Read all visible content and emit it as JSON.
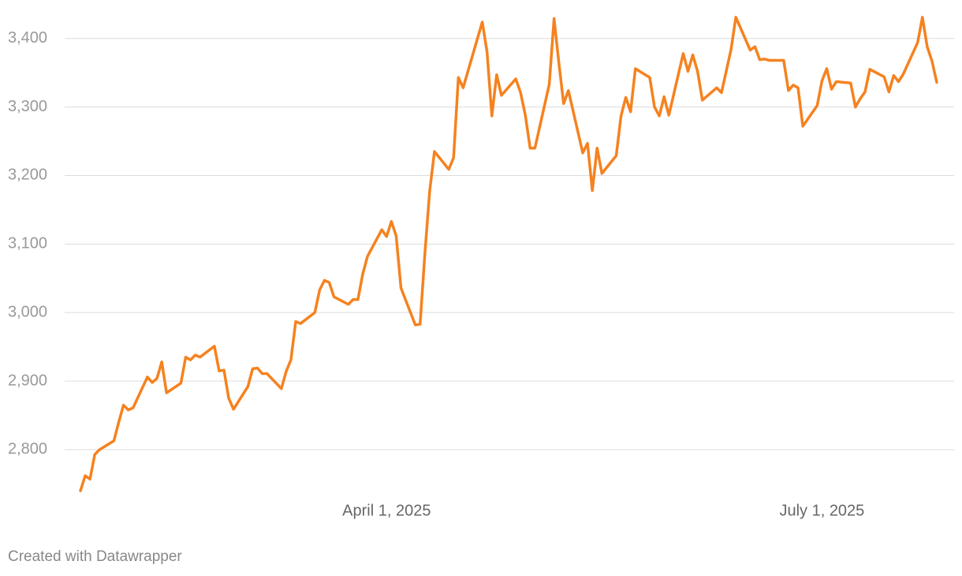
{
  "chart_data": {
    "type": "line",
    "x": [
      "2025-01-27",
      "2025-01-28",
      "2025-01-29",
      "2025-01-30",
      "2025-01-31",
      "2025-02-03",
      "2025-02-04",
      "2025-02-05",
      "2025-02-06",
      "2025-02-07",
      "2025-02-10",
      "2025-02-11",
      "2025-02-12",
      "2025-02-13",
      "2025-02-14",
      "2025-02-17",
      "2025-02-18",
      "2025-02-19",
      "2025-02-20",
      "2025-02-21",
      "2025-02-24",
      "2025-02-25",
      "2025-02-26",
      "2025-02-27",
      "2025-02-28",
      "2025-03-03",
      "2025-03-04",
      "2025-03-05",
      "2025-03-06",
      "2025-03-07",
      "2025-03-10",
      "2025-03-11",
      "2025-03-12",
      "2025-03-13",
      "2025-03-14",
      "2025-03-17",
      "2025-03-18",
      "2025-03-19",
      "2025-03-20",
      "2025-03-21",
      "2025-03-24",
      "2025-03-25",
      "2025-03-26",
      "2025-03-27",
      "2025-03-28",
      "2025-03-31",
      "2025-04-01",
      "2025-04-02",
      "2025-04-03",
      "2025-04-04",
      "2025-04-07",
      "2025-04-08",
      "2025-04-09",
      "2025-04-10",
      "2025-04-11",
      "2025-04-14",
      "2025-04-15",
      "2025-04-16",
      "2025-04-17",
      "2025-04-21",
      "2025-04-22",
      "2025-04-23",
      "2025-04-24",
      "2025-04-25",
      "2025-04-28",
      "2025-04-29",
      "2025-04-30",
      "2025-05-01",
      "2025-05-02",
      "2025-05-05",
      "2025-05-06",
      "2025-05-07",
      "2025-05-08",
      "2025-05-09",
      "2025-05-12",
      "2025-05-13",
      "2025-05-14",
      "2025-05-15",
      "2025-05-16",
      "2025-05-19",
      "2025-05-20",
      "2025-05-21",
      "2025-05-22",
      "2025-05-23",
      "2025-05-26",
      "2025-05-27",
      "2025-05-28",
      "2025-05-29",
      "2025-05-30",
      "2025-06-02",
      "2025-06-03",
      "2025-06-04",
      "2025-06-05",
      "2025-06-06",
      "2025-06-09",
      "2025-06-10",
      "2025-06-12",
      "2025-06-13",
      "2025-06-16",
      "2025-06-17",
      "2025-06-18",
      "2025-06-19",
      "2025-06-20",
      "2025-06-23",
      "2025-06-24",
      "2025-06-25",
      "2025-06-26",
      "2025-06-27",
      "2025-06-30",
      "2025-07-01",
      "2025-07-02",
      "2025-07-03",
      "2025-07-04",
      "2025-07-07",
      "2025-07-08",
      "2025-07-09",
      "2025-07-10",
      "2025-07-11",
      "2025-07-14",
      "2025-07-15",
      "2025-07-16",
      "2025-07-17",
      "2025-07-18",
      "2025-07-21",
      "2025-07-22",
      "2025-07-23",
      "2025-07-24",
      "2025-07-25"
    ],
    "values": [
      2740,
      2762,
      2757,
      2793,
      2800,
      2813,
      2840,
      2865,
      2858,
      2861,
      2906,
      2898,
      2904,
      2928,
      2883,
      2897,
      2935,
      2931,
      2938,
      2935,
      2951,
      2915,
      2916,
      2875,
      2859,
      2892,
      2918,
      2919,
      2911,
      2911,
      2889,
      2914,
      2931,
      2987,
      2984,
      3000,
      3033,
      3047,
      3044,
      3023,
      3012,
      3019,
      3019,
      3056,
      3082,
      3121,
      3111,
      3133,
      3112,
      3036,
      2982,
      2983,
      3086,
      3177,
      3235,
      3209,
      3226,
      3343,
      3328,
      3424,
      3380,
      3287,
      3347,
      3317,
      3341,
      3321,
      3288,
      3240,
      3240,
      3333,
      3429,
      3365,
      3305,
      3324,
      3233,
      3247,
      3178,
      3240,
      3203,
      3229,
      3287,
      3314,
      3293,
      3356,
      3343,
      3300,
      3287,
      3315,
      3288,
      3378,
      3352,
      3376,
      3352,
      3310,
      3328,
      3321,
      3384,
      3431,
      3383,
      3388,
      3369,
      3370,
      3368,
      3368,
      3324,
      3332,
      3328,
      3272,
      3302,
      3338,
      3356,
      3326,
      3337,
      3335,
      3300,
      3312,
      3322,
      3355,
      3344,
      3322,
      3346,
      3337,
      3348,
      3394,
      3431,
      3388,
      3367,
      3336
    ],
    "color": "#f5821f",
    "xlim": [
      "2025-01-27",
      "2025-07-25"
    ],
    "xticks": [
      {
        "value": "2025-04-01",
        "label": "April 1, 2025"
      },
      {
        "value": "2025-07-01",
        "label": "July 1, 2025"
      }
    ],
    "ylim": [
      2740,
      3440
    ],
    "yticks": [
      {
        "value": 2800,
        "label": "2,800"
      },
      {
        "value": 2900,
        "label": "2,900"
      },
      {
        "value": 3000,
        "label": "3,000"
      },
      {
        "value": 3100,
        "label": "3,100"
      },
      {
        "value": 3200,
        "label": "3,200"
      },
      {
        "value": 3300,
        "label": "3,300"
      },
      {
        "value": 3400,
        "label": "3,400"
      }
    ],
    "grid": true,
    "credit": "Created with Datawrapper"
  }
}
